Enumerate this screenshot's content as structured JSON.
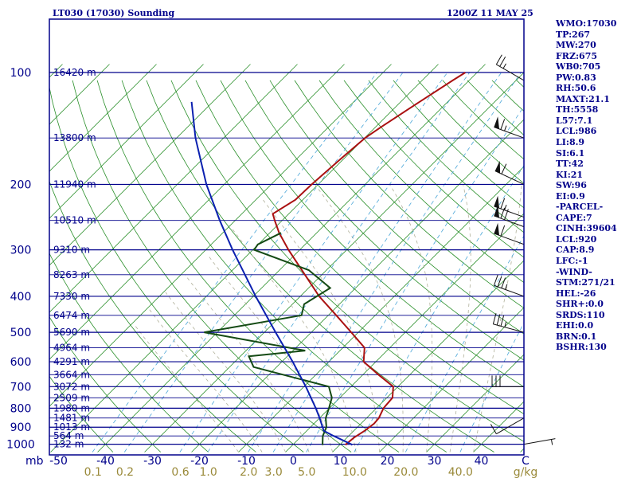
{
  "header": {
    "station": "LT030 (17030) Sounding",
    "time": "1200Z 11 MAY 25"
  },
  "indices": [
    "WMO:17030",
    "TP:267",
    "MW:270",
    "FRZ:675",
    "WB0:705",
    "PW:0.83",
    "RH:50.6",
    "MAXT:21.1",
    "TH:5558",
    "L57:7.1",
    "LCL:986",
    "LI:8.9",
    "SI:6.1",
    "TT:42",
    "KI:21",
    "SW:96",
    "EI:0.9",
    "-PARCEL-",
    "CAPE:7",
    "CINH:39604",
    "LCL:920",
    "CAP:8.9",
    "LFC:-1",
    "-WIND-",
    "STM:271/21",
    "HEL:-26",
    "SHR+:0.0",
    "SRDS:110",
    "EHI:0.0",
    "BRN:0.1",
    "BSHR:130"
  ],
  "colors": {
    "frame": "#00008b",
    "isobar": "#00008b",
    "isotherm": "#2a8f2a",
    "dry_adiabat": "#2a8f2a",
    "moist_adiabat": "#b0b09a",
    "mixing_ratio": "#4aa6d8",
    "temperature": "#aa1111",
    "dewpoint": "#144a14",
    "parcel": "#0b20b0",
    "wind_barb": "#111111",
    "mixing_label": "#9a8a3a"
  },
  "chart_data": {
    "type": "skew-t log-p sounding",
    "pressure_axis": {
      "unit": "mb",
      "ticks": [
        100,
        200,
        300,
        400,
        500,
        600,
        700,
        800,
        900,
        1000
      ],
      "range": [
        100,
        1050
      ],
      "log_scale": true
    },
    "temperature_axis": {
      "unit": "C",
      "ticks": [
        -50,
        -40,
        -30,
        -20,
        -10,
        0,
        10,
        20,
        30,
        40
      ],
      "label": "C"
    },
    "height_labels": [
      {
        "p": 100,
        "label": "16420 m"
      },
      {
        "p": 150,
        "label": "13800 m"
      },
      {
        "p": 200,
        "label": "11940 m"
      },
      {
        "p": 250,
        "label": "10510 m"
      },
      {
        "p": 300,
        "label": "9310 m"
      },
      {
        "p": 350,
        "label": "8263 m"
      },
      {
        "p": 400,
        "label": "7330 m"
      },
      {
        "p": 450,
        "label": "6474 m"
      },
      {
        "p": 500,
        "label": "5690 m"
      },
      {
        "p": 550,
        "label": "4964 m"
      },
      {
        "p": 600,
        "label": "4291 m"
      },
      {
        "p": 650,
        "label": "3664 m"
      },
      {
        "p": 700,
        "label": "3072 m"
      },
      {
        "p": 750,
        "label": "2509 m"
      },
      {
        "p": 800,
        "label": "1980 m"
      },
      {
        "p": 850,
        "label": "1481 m"
      },
      {
        "p": 900,
        "label": "1013 m"
      },
      {
        "p": 950,
        "label": "564 m"
      },
      {
        "p": 1000,
        "label": "132 m"
      }
    ],
    "mixing_ratio_labels": [
      "0.1",
      "0.2",
      "0.6",
      "1.0",
      "2.0",
      "3.0",
      "5.0",
      "10.0",
      "20.0",
      "40.0"
    ],
    "mixing_ratio_unit": "g/kg",
    "temperature_profile": [
      {
        "p": 1005,
        "t": 11.5
      },
      {
        "p": 1000,
        "t": 11.2
      },
      {
        "p": 960,
        "t": 11.5
      },
      {
        "p": 920,
        "t": 12.3
      },
      {
        "p": 880,
        "t": 12.8
      },
      {
        "p": 850,
        "t": 12.6
      },
      {
        "p": 800,
        "t": 11.5
      },
      {
        "p": 750,
        "t": 11.2
      },
      {
        "p": 700,
        "t": 9.0
      },
      {
        "p": 650,
        "t": 3.3
      },
      {
        "p": 600,
        "t": -2.6
      },
      {
        "p": 550,
        "t": -5.4
      },
      {
        "p": 500,
        "t": -11.5
      },
      {
        "p": 450,
        "t": -18.3
      },
      {
        "p": 400,
        "t": -26.0
      },
      {
        "p": 350,
        "t": -33.6
      },
      {
        "p": 300,
        "t": -42.4
      },
      {
        "p": 270,
        "t": -48.0
      },
      {
        "p": 250,
        "t": -51.6
      },
      {
        "p": 240,
        "t": -53.4
      },
      {
        "p": 220,
        "t": -51.6
      },
      {
        "p": 200,
        "t": -51.4
      },
      {
        "p": 170,
        "t": -50.6
      },
      {
        "p": 150,
        "t": -49.9
      },
      {
        "p": 140,
        "t": -48.8
      },
      {
        "p": 120,
        "t": -46.0
      },
      {
        "p": 105,
        "t": -43.5
      },
      {
        "p": 100,
        "t": -42.5
      }
    ],
    "dewpoint_profile": [
      {
        "p": 1005,
        "td": 6.5
      },
      {
        "p": 1000,
        "td": 6.2
      },
      {
        "p": 950,
        "td": 4.5
      },
      {
        "p": 900,
        "td": 3.4
      },
      {
        "p": 850,
        "td": 1.3
      },
      {
        "p": 800,
        "td": -0.1
      },
      {
        "p": 750,
        "td": -1.7
      },
      {
        "p": 700,
        "td": -4.7
      },
      {
        "p": 620,
        "td": -24.9
      },
      {
        "p": 580,
        "td": -28.2
      },
      {
        "p": 560,
        "td": -17.4
      },
      {
        "p": 500,
        "td": -42.8
      },
      {
        "p": 450,
        "td": -25.7
      },
      {
        "p": 420,
        "td": -27.5
      },
      {
        "p": 380,
        "td": -25.4
      },
      {
        "p": 340,
        "td": -33.8
      },
      {
        "p": 300,
        "td": -49.7
      },
      {
        "p": 290,
        "td": -50.1
      },
      {
        "p": 270,
        "td": -47.6
      }
    ],
    "parcel_profile": [
      {
        "p": 1005,
        "t": 12.7
      },
      {
        "p": 1000,
        "t": 12.3
      },
      {
        "p": 950,
        "t": 6.8
      },
      {
        "p": 920,
        "t": 3.6
      },
      {
        "p": 850,
        "t": 0.0
      },
      {
        "p": 800,
        "t": -2.9
      },
      {
        "p": 700,
        "t": -9.6
      },
      {
        "p": 600,
        "t": -17.7
      },
      {
        "p": 500,
        "t": -27.6
      },
      {
        "p": 400,
        "t": -39.5
      },
      {
        "p": 300,
        "t": -54.3
      },
      {
        "p": 250,
        "t": -63.3
      },
      {
        "p": 200,
        "t": -73.8
      },
      {
        "p": 150,
        "t": -86.0
      },
      {
        "p": 120,
        "t": -94.5
      }
    ],
    "wind_barbs": [
      {
        "p": 105,
        "dir": 300,
        "spd": 25
      },
      {
        "p": 150,
        "dir": 290,
        "spd": 65
      },
      {
        "p": 200,
        "dir": 295,
        "spd": 60
      },
      {
        "p": 245,
        "dir": 290,
        "spd": 65
      },
      {
        "p": 260,
        "dir": 290,
        "spd": 70
      },
      {
        "p": 290,
        "dir": 290,
        "spd": 60
      },
      {
        "p": 400,
        "dir": 290,
        "spd": 35
      },
      {
        "p": 500,
        "dir": 285,
        "spd": 35
      },
      {
        "p": 700,
        "dir": 270,
        "spd": 30
      },
      {
        "p": 850,
        "dir": 240,
        "spd": 10
      },
      {
        "p": 1000,
        "dir": 80,
        "spd": 5
      }
    ]
  }
}
